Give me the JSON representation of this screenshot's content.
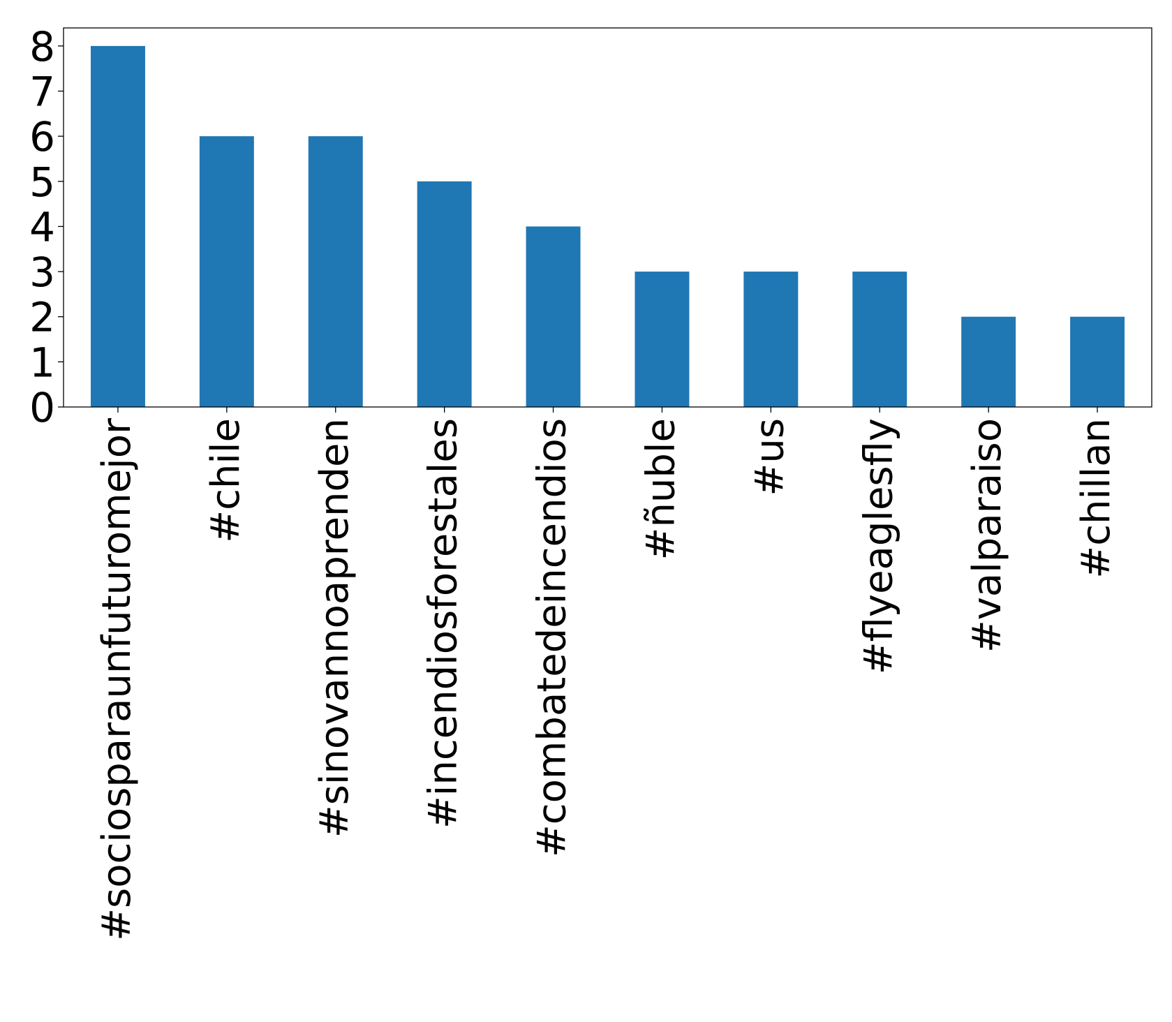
{
  "chart_data": {
    "type": "bar",
    "title": "",
    "xlabel": "",
    "ylabel": "",
    "categories": [
      "#sociosparaunfuturomejor",
      "#chile",
      "#sinovannoaprenden",
      "#incendiosforestales",
      "#combatedeincendios",
      "#ñuble",
      "#us",
      "#flyeaglesfly",
      "#valparaiso",
      "#chillan"
    ],
    "values": [
      8,
      6,
      6,
      5,
      4,
      3,
      3,
      3,
      2,
      2
    ],
    "yticks": [
      "0",
      "1",
      "2",
      "3",
      "4",
      "5",
      "6",
      "7",
      "8"
    ],
    "ylim": [
      0,
      8.4
    ],
    "grid": false,
    "legend": "none",
    "bar_color": "#1f77b4"
  }
}
